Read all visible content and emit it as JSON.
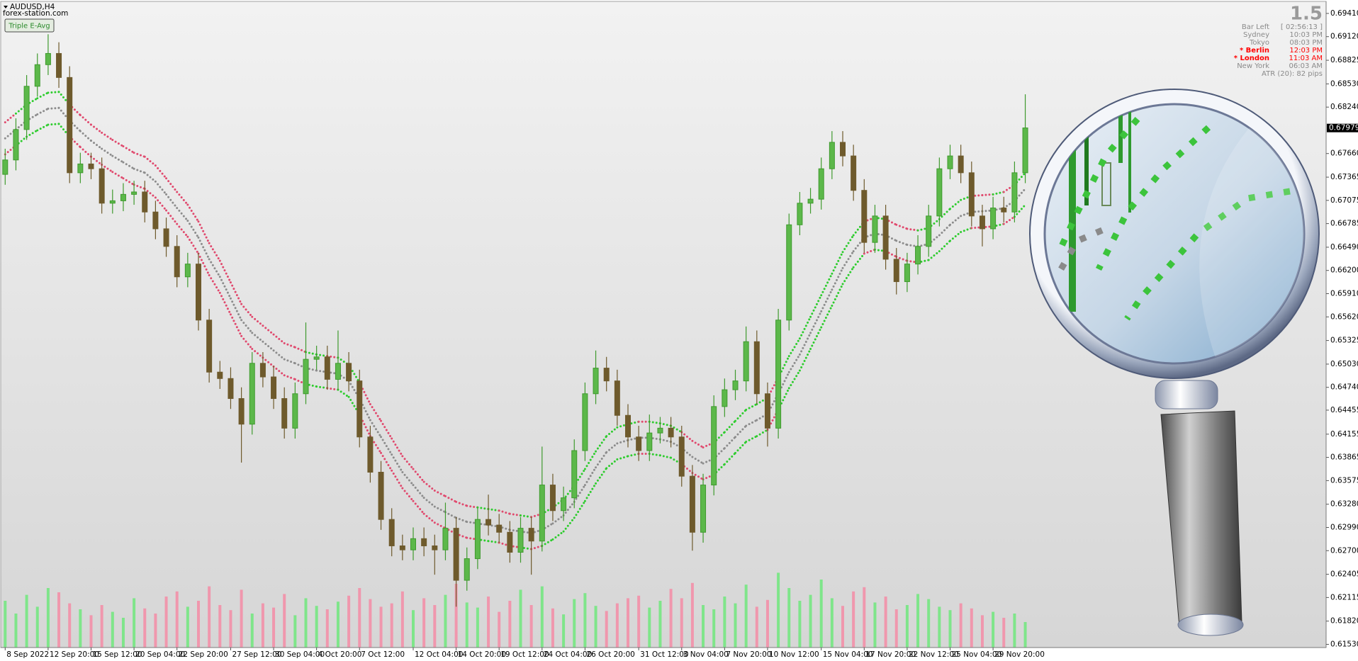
{
  "header": {
    "symbol": "AUDUSD,H4",
    "site": "forex-station.com",
    "button": "Triple E-Avg"
  },
  "info_panel": {
    "big": "1.5",
    "rows": [
      {
        "label": "Bar Left",
        "value": "[ 02:56:13 ]",
        "color": "#8a8a8a"
      },
      {
        "label": "Sydney",
        "value": "10:03 PM",
        "color": "#8a8a8a"
      },
      {
        "label": "Tokyo",
        "value": "08:03 PM",
        "color": "#8a8a8a"
      },
      {
        "label": "* Berlin",
        "value": "12:03 PM",
        "color": "#ff0000"
      },
      {
        "label": "* London",
        "value": "11:03 AM",
        "color": "#ff0000"
      },
      {
        "label": "New York",
        "value": "06:03 AM",
        "color": "#8a8a8a"
      }
    ],
    "atr": "ATR (20): 82 pips"
  },
  "chart_data": {
    "type": "candlestick",
    "categories": [
      "8 Sep 2022",
      null,
      null,
      null,
      "12 Sep 20:00",
      null,
      null,
      null,
      "15 Sep 12:00",
      null,
      null,
      null,
      "20 Sep 04:00",
      null,
      null,
      null,
      "22 Sep 20:00",
      null,
      null,
      null,
      null,
      "27 Sep 12:00",
      null,
      null,
      null,
      "30 Sep 04:00",
      null,
      null,
      null,
      "4 Oct 20:00",
      null,
      null,
      null,
      "7 Oct 12:00",
      null,
      null,
      null,
      null,
      "12 Oct 04:00",
      null,
      null,
      null,
      "14 Oct 20:00",
      null,
      null,
      null,
      "19 Oct 12:00",
      null,
      null,
      null,
      "24 Oct 04:00",
      null,
      null,
      null,
      "26 Oct 20:00",
      null,
      null,
      null,
      null,
      "31 Oct 12:00",
      null,
      null,
      null,
      "3 Nov 04:00",
      null,
      null,
      null,
      "7 Nov 20:00",
      null,
      null,
      null,
      "10 Nov 12:00",
      null,
      null,
      null,
      null,
      "15 Nov 04:00",
      null,
      null,
      null,
      "17 Nov 20:00",
      null,
      null,
      null,
      "22 Nov 12:00",
      null,
      null,
      null,
      "25 Nov 04:00",
      null,
      null,
      null,
      "29 Nov 20:00",
      null,
      null,
      null
    ],
    "opens": [
      0.674,
      0.6758,
      0.6796,
      0.685,
      0.6877,
      0.6891,
      0.6861,
      0.6742,
      0.6753,
      0.6747,
      0.6704,
      0.6707,
      0.6715,
      0.6718,
      0.6693,
      0.6672,
      0.665,
      0.6612,
      0.6628,
      0.6558,
      0.6493,
      0.6485,
      0.646,
      0.6428,
      0.6504,
      0.6487,
      0.646,
      0.6423,
      0.6466,
      0.6509,
      0.6512,
      0.6484,
      0.6504,
      0.6482,
      0.6412,
      0.6368,
      0.6309,
      0.6276,
      0.6271,
      0.6285,
      0.6276,
      0.6271,
      0.6298,
      0.6233,
      0.626,
      0.6309,
      0.6302,
      0.6293,
      0.6268,
      0.6298,
      0.6282,
      0.6352,
      0.632,
      0.6336,
      0.6395,
      0.6466,
      0.6498,
      0.6482,
      0.6439,
      0.6412,
      0.6395,
      0.6417,
      0.6423,
      0.6412,
      0.6363,
      0.6293,
      0.6352,
      0.645,
      0.6471,
      0.6482,
      0.6531,
      0.6466,
      0.6423,
      0.6558,
      0.6677,
      0.6704,
      0.6709,
      0.6747,
      0.678,
      0.6763,
      0.672,
      0.6655,
      0.6688,
      0.6634,
      0.6606,
      0.6628,
      0.665,
      0.6688,
      0.6747,
      0.6763,
      0.6742,
      0.6688,
      0.6672,
      0.6698,
      0.6693,
      0.6742
    ],
    "highs": [
      0.6772,
      0.681,
      0.6864,
      0.6891,
      0.6915,
      0.6905,
      0.6875,
      0.6767,
      0.6767,
      0.6761,
      0.6721,
      0.6729,
      0.6732,
      0.6732,
      0.6707,
      0.6686,
      0.6664,
      0.6642,
      0.6642,
      0.6572,
      0.6507,
      0.6499,
      0.6474,
      0.6518,
      0.6518,
      0.6501,
      0.6474,
      0.648,
      0.6555,
      0.6526,
      0.6526,
      0.6545,
      0.6518,
      0.6496,
      0.6426,
      0.6382,
      0.6323,
      0.629,
      0.6299,
      0.6299,
      0.629,
      0.633,
      0.6312,
      0.6274,
      0.6323,
      0.634,
      0.6316,
      0.6307,
      0.6312,
      0.6312,
      0.64,
      0.6366,
      0.635,
      0.6409,
      0.648,
      0.652,
      0.6512,
      0.6496,
      0.6453,
      0.6426,
      0.644,
      0.6437,
      0.6437,
      0.6426,
      0.6377,
      0.6366,
      0.6464,
      0.6485,
      0.6496,
      0.655,
      0.6545,
      0.648,
      0.6572,
      0.6691,
      0.6718,
      0.6723,
      0.6761,
      0.6794,
      0.6794,
      0.6777,
      0.6734,
      0.6702,
      0.6702,
      0.6648,
      0.6642,
      0.6664,
      0.6702,
      0.6761,
      0.6777,
      0.6777,
      0.6756,
      0.6702,
      0.6712,
      0.6712,
      0.6756,
      0.684
    ],
    "lows": [
      0.6727,
      0.6745,
      0.6783,
      0.6837,
      0.6864,
      0.6848,
      0.6729,
      0.6729,
      0.6734,
      0.6691,
      0.6691,
      0.6694,
      0.6702,
      0.668,
      0.6659,
      0.6637,
      0.6599,
      0.6599,
      0.6545,
      0.648,
      0.6472,
      0.6447,
      0.638,
      0.6415,
      0.6474,
      0.6447,
      0.641,
      0.641,
      0.6453,
      0.6496,
      0.6471,
      0.6471,
      0.6469,
      0.6399,
      0.6355,
      0.6296,
      0.6263,
      0.6258,
      0.6258,
      0.6263,
      0.624,
      0.6258,
      0.62,
      0.622,
      0.6247,
      0.6289,
      0.628,
      0.6255,
      0.6255,
      0.624,
      0.6269,
      0.6307,
      0.6307,
      0.6323,
      0.6382,
      0.6453,
      0.6469,
      0.6426,
      0.6399,
      0.6382,
      0.6382,
      0.6404,
      0.6399,
      0.635,
      0.627,
      0.628,
      0.6339,
      0.6437,
      0.6458,
      0.6469,
      0.6453,
      0.64,
      0.641,
      0.6545,
      0.6664,
      0.6691,
      0.6696,
      0.6734,
      0.675,
      0.6707,
      0.6642,
      0.6642,
      0.6621,
      0.659,
      0.6593,
      0.6615,
      0.6637,
      0.6675,
      0.6734,
      0.6729,
      0.6675,
      0.665,
      0.6659,
      0.668,
      0.668,
      0.6729
    ],
    "closes": [
      0.6758,
      0.6796,
      0.685,
      0.6877,
      0.6891,
      0.6861,
      0.6742,
      0.6753,
      0.6747,
      0.6704,
      0.6707,
      0.6715,
      0.6718,
      0.6693,
      0.6672,
      0.665,
      0.6612,
      0.6628,
      0.6558,
      0.6493,
      0.6485,
      0.646,
      0.6428,
      0.6504,
      0.6487,
      0.646,
      0.6423,
      0.6466,
      0.6509,
      0.6512,
      0.6484,
      0.6504,
      0.6482,
      0.6412,
      0.6368,
      0.6309,
      0.6276,
      0.6271,
      0.6285,
      0.6276,
      0.6271,
      0.6298,
      0.6233,
      0.626,
      0.6309,
      0.6302,
      0.6293,
      0.6268,
      0.6298,
      0.6282,
      0.6352,
      0.632,
      0.6336,
      0.6395,
      0.6466,
      0.6498,
      0.6482,
      0.6439,
      0.6412,
      0.6395,
      0.6417,
      0.6423,
      0.6412,
      0.6363,
      0.6293,
      0.6352,
      0.645,
      0.6471,
      0.6482,
      0.6531,
      0.6466,
      0.6423,
      0.6558,
      0.6677,
      0.6704,
      0.6709,
      0.6747,
      0.678,
      0.6763,
      0.672,
      0.6655,
      0.6688,
      0.6634,
      0.6606,
      0.6628,
      0.665,
      0.6688,
      0.6747,
      0.6763,
      0.6742,
      0.6688,
      0.6672,
      0.6698,
      0.6693,
      0.6742,
      0.6798
    ],
    "up_color": "#3f9a2e",
    "down_color": "#6e5a2c",
    "volumes": [
      55,
      40,
      62,
      48,
      70,
      65,
      52,
      45,
      38,
      50,
      42,
      35,
      58,
      46,
      40,
      60,
      66,
      48,
      55,
      72,
      50,
      44,
      68,
      40,
      52,
      47,
      63,
      38,
      58,
      49,
      45,
      54,
      61,
      70,
      57,
      48,
      52,
      66,
      44,
      58,
      50,
      62,
      75,
      53,
      47,
      60,
      42,
      55,
      68,
      50,
      72,
      46,
      39,
      57,
      64,
      49,
      43,
      52,
      58,
      61,
      47,
      55,
      69,
      58,
      76,
      50,
      45,
      60,
      52,
      74,
      48,
      56,
      88,
      70,
      55,
      62,
      80,
      58,
      49,
      66,
      71,
      53,
      60,
      45,
      50,
      63,
      57,
      48,
      44,
      52,
      46,
      38,
      42,
      35,
      40,
      30
    ],
    "volume_lim": [
      0,
      100
    ],
    "volume_up_color": "#7fe58a",
    "volume_down_color": "#f097ad",
    "bands": [
      {
        "values": [
          0.6805,
          0.6816,
          0.6827,
          0.6835,
          0.6842,
          0.6843,
          0.6827,
          0.6814,
          0.6802,
          0.6792,
          0.6783,
          0.6775,
          0.6767,
          0.6762,
          0.6751,
          0.6735,
          0.6718,
          0.6702,
          0.6681,
          0.6654,
          0.6632,
          0.6605,
          0.6578,
          0.6562,
          0.6551,
          0.654,
          0.6529,
          0.6524,
          0.6518,
          0.6515,
          0.6513,
          0.6511,
          0.6502,
          0.648,
          0.6453,
          0.6432,
          0.641,
          0.6388,
          0.6372,
          0.6356,
          0.6345,
          0.6338,
          0.6331,
          0.6326,
          0.6324,
          0.6322,
          0.632,
          0.6316,
          0.6314,
          0.6312,
          0.6316,
          0.6324,
          0.6334,
          0.6351,
          0.6372,
          0.6394,
          0.6413,
          0.6424,
          0.6428,
          0.6431,
          0.6431,
          0.6429,
          0.6426,
          0.6418,
          0.6407,
          0.6399,
          0.6405,
          0.6418,
          0.6432,
          0.6446,
          0.6453,
          0.6461,
          0.6486,
          0.6513,
          0.6535,
          0.6562,
          0.6589,
          0.6616,
          0.6643,
          0.6664,
          0.6681,
          0.6686,
          0.6684,
          0.6677,
          0.6672,
          0.667,
          0.6673,
          0.6684,
          0.6697,
          0.6708,
          0.6713,
          0.6714,
          0.6715,
          0.6718,
          0.6727,
          0.6742
        ]
      },
      {
        "values": [
          0.6785,
          0.6796,
          0.6807,
          0.6815,
          0.6822,
          0.6823,
          0.6807,
          0.6794,
          0.6782,
          0.6772,
          0.6763,
          0.6755,
          0.6747,
          0.6742,
          0.6731,
          0.6715,
          0.6698,
          0.6682,
          0.6661,
          0.6634,
          0.6612,
          0.6585,
          0.6558,
          0.6542,
          0.6531,
          0.652,
          0.6509,
          0.6504,
          0.6498,
          0.6495,
          0.6493,
          0.6491,
          0.6482,
          0.646,
          0.6433,
          0.6412,
          0.639,
          0.6368,
          0.6352,
          0.6336,
          0.6325,
          0.6318,
          0.6311,
          0.6306,
          0.6304,
          0.6302,
          0.63,
          0.6296,
          0.6294,
          0.6292,
          0.6296,
          0.6304,
          0.6314,
          0.6331,
          0.6352,
          0.6374,
          0.6393,
          0.6404,
          0.6408,
          0.6411,
          0.6411,
          0.6409,
          0.6406,
          0.6398,
          0.6387,
          0.6379,
          0.6385,
          0.6398,
          0.6412,
          0.6426,
          0.6433,
          0.6441,
          0.6466,
          0.6493,
          0.6515,
          0.6542,
          0.6569,
          0.6596,
          0.6623,
          0.6644,
          0.6661,
          0.6666,
          0.6664,
          0.6657,
          0.6652,
          0.665,
          0.6653,
          0.6664,
          0.6677,
          0.6688,
          0.6693,
          0.6694,
          0.6695,
          0.6698,
          0.6707,
          0.6722
        ]
      },
      {
        "values": [
          0.6765,
          0.6776,
          0.6787,
          0.6795,
          0.6802,
          0.6803,
          0.6787,
          0.6774,
          0.6762,
          0.6752,
          0.6743,
          0.6735,
          0.6727,
          0.6722,
          0.6711,
          0.6695,
          0.6678,
          0.6662,
          0.6641,
          0.6614,
          0.6592,
          0.6565,
          0.6538,
          0.6522,
          0.6511,
          0.65,
          0.6489,
          0.6484,
          0.6478,
          0.6475,
          0.6473,
          0.6471,
          0.6462,
          0.644,
          0.6413,
          0.6392,
          0.637,
          0.6348,
          0.6332,
          0.6316,
          0.6305,
          0.6298,
          0.6291,
          0.6286,
          0.6284,
          0.6282,
          0.628,
          0.6276,
          0.6274,
          0.6272,
          0.6276,
          0.6284,
          0.6294,
          0.6311,
          0.6332,
          0.6354,
          0.6373,
          0.6384,
          0.6388,
          0.6391,
          0.6391,
          0.6389,
          0.6386,
          0.6378,
          0.6367,
          0.6359,
          0.6365,
          0.6378,
          0.6392,
          0.6406,
          0.6413,
          0.6421,
          0.6446,
          0.6473,
          0.6495,
          0.6522,
          0.6549,
          0.6576,
          0.6603,
          0.6624,
          0.6641,
          0.6646,
          0.6644,
          0.6637,
          0.6632,
          0.663,
          0.6633,
          0.6644,
          0.6657,
          0.6668,
          0.6673,
          0.6674,
          0.6675,
          0.6678,
          0.6687,
          0.6702
        ]
      }
    ],
    "band_up_color": "#2ecc2e",
    "band_down_color": "#e04a6e",
    "band_mid_color": "#8c8c8c",
    "ylim": [
      0.6149,
      0.6956
    ],
    "yticks": [
      {
        "value": 0.6941,
        "label": "0.69410"
      },
      {
        "value": 0.6912,
        "label": "0.69120"
      },
      0.68825,
      {
        "value": 0.6853,
        "label": "0.68530"
      },
      {
        "value": 0.6824,
        "label": "0.68240"
      },
      {
        "value": 0.6766,
        "label": "0.67660"
      },
      0.67365,
      0.67075,
      0.66785,
      {
        "value": 0.6649,
        "label": "0.66490"
      },
      {
        "value": 0.662,
        "label": "0.66200"
      },
      {
        "value": 0.6591,
        "label": "0.65910"
      },
      {
        "value": 0.6562,
        "label": "0.65620"
      },
      0.65325,
      {
        "value": 0.6503,
        "label": "0.65030"
      },
      {
        "value": 0.6474,
        "label": "0.64740"
      },
      0.64455,
      0.64155,
      0.63865,
      0.63575,
      {
        "value": 0.6328,
        "label": "0.63280"
      },
      {
        "value": 0.6299,
        "label": "0.62990"
      },
      {
        "value": 0.627,
        "label": "0.62700"
      },
      0.62405,
      0.62115,
      {
        "value": 0.6182,
        "label": "0.61820"
      },
      {
        "value": 0.6153,
        "label": "0.61530"
      }
    ],
    "current_price": 0.67979,
    "grid": false
  }
}
